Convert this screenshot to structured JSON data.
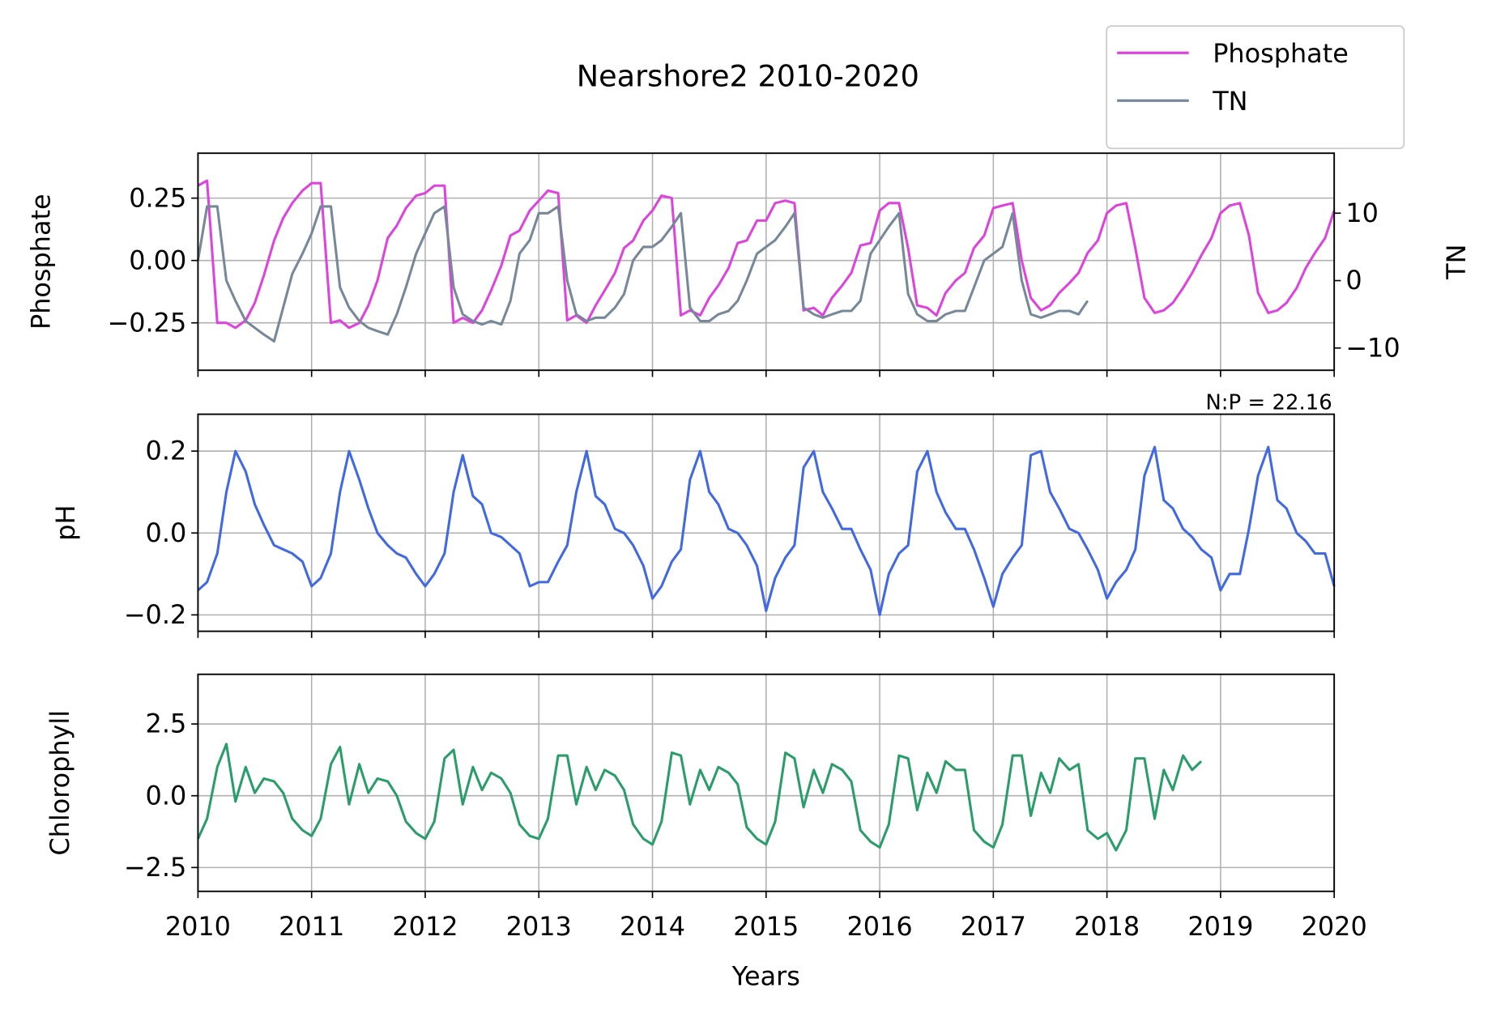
{
  "chart_data": [
    {
      "type": "line",
      "title": "Nearshore2 2010-2020",
      "ylabel": "Phosphate",
      "y2label": "TN",
      "legend": "upper right",
      "grid": true,
      "x": [
        2010,
        2010.08,
        2010.17,
        2010.25,
        2010.33,
        2010.42,
        2010.5,
        2010.58,
        2010.67,
        2010.75,
        2010.83,
        2010.92,
        2011,
        2011.08,
        2011.17,
        2011.25,
        2011.33,
        2011.42,
        2011.5,
        2011.58,
        2011.67,
        2011.75,
        2011.83,
        2011.92,
        2012,
        2012.08,
        2012.17,
        2012.25,
        2012.33,
        2012.42,
        2012.5,
        2012.58,
        2012.67,
        2012.75,
        2012.83,
        2012.92,
        2013,
        2013.08,
        2013.17,
        2013.25,
        2013.33,
        2013.42,
        2013.5,
        2013.58,
        2013.67,
        2013.75,
        2013.83,
        2013.92,
        2014,
        2014.08,
        2014.17,
        2014.25,
        2014.33,
        2014.42,
        2014.5,
        2014.58,
        2014.67,
        2014.75,
        2014.83,
        2014.92,
        2015,
        2015.08,
        2015.17,
        2015.25,
        2015.33,
        2015.42,
        2015.5,
        2015.58,
        2015.67,
        2015.75,
        2015.83,
        2015.92,
        2016,
        2016.08,
        2016.17,
        2016.25,
        2016.33,
        2016.42,
        2016.5,
        2016.58,
        2016.67,
        2016.75,
        2016.83,
        2016.92,
        2017,
        2017.08,
        2017.17,
        2017.25,
        2017.33,
        2017.42,
        2017.5,
        2017.58,
        2017.67,
        2017.75,
        2017.83,
        2017.92,
        2018,
        2018.08,
        2018.17,
        2018.25,
        2018.33,
        2018.42,
        2018.5,
        2018.58,
        2018.67,
        2018.75,
        2018.83,
        2018.92,
        2019,
        2019.08,
        2019.17,
        2019.25,
        2019.33,
        2019.42,
        2019.5,
        2019.58,
        2019.67,
        2019.75,
        2019.83,
        2019.92,
        2020
      ],
      "xlim": [
        2010,
        2020
      ],
      "xticks": [
        2010,
        2011,
        2012,
        2013,
        2014,
        2015,
        2016,
        2017,
        2018,
        2019,
        2020
      ],
      "ylim": [
        -0.44,
        0.43
      ],
      "yticks": [
        {
          "value": -0.25,
          "label": "−0.25"
        },
        {
          "value": 0,
          "label": "0.00"
        },
        0.25
      ],
      "y2lim": [
        -13.3,
        18.9
      ],
      "y2ticks": [
        {
          "value": -10,
          "label": "−10"
        },
        0,
        10
      ],
      "series": [
        {
          "name": "Phosphate",
          "color": "#dd44dd",
          "values": [
            0.3,
            0.32,
            -0.25,
            -0.25,
            -0.27,
            -0.24,
            -0.17,
            -0.06,
            0.08,
            0.17,
            0.23,
            0.28,
            0.31,
            0.31,
            -0.25,
            -0.24,
            -0.27,
            -0.25,
            -0.18,
            -0.08,
            0.09,
            0.14,
            0.21,
            0.26,
            0.27,
            0.3,
            0.3,
            -0.25,
            -0.23,
            -0.25,
            -0.2,
            -0.12,
            -0.02,
            0.1,
            0.12,
            0.2,
            0.24,
            0.28,
            0.27,
            -0.24,
            -0.22,
            -0.25,
            -0.18,
            -0.12,
            -0.05,
            0.05,
            0.08,
            0.16,
            0.2,
            0.26,
            0.25,
            -0.22,
            -0.2,
            -0.22,
            -0.15,
            -0.1,
            -0.03,
            0.07,
            0.08,
            0.16,
            0.16,
            0.23,
            0.24,
            0.23,
            -0.2,
            -0.19,
            -0.22,
            -0.15,
            -0.1,
            -0.05,
            0.06,
            0.07,
            0.2,
            0.23,
            0.23,
            0.05,
            -0.18,
            -0.19,
            -0.22,
            -0.13,
            -0.08,
            -0.05,
            0.05,
            0.1,
            0.21,
            0.22,
            0.23,
            0.0,
            -0.15,
            -0.2,
            -0.18,
            -0.13,
            -0.09,
            -0.05,
            0.03,
            0.08,
            0.19,
            0.22,
            0.23,
            0.05,
            -0.15,
            -0.21,
            -0.2,
            -0.17,
            -0.11,
            -0.05,
            0.02,
            0.09,
            0.19,
            0.22,
            0.23,
            0.1,
            -0.13,
            -0.21,
            -0.2,
            -0.17,
            -0.11,
            -0.03,
            0.03,
            0.09,
            0.2
          ]
        },
        {
          "name": "TN",
          "color": "#778899",
          "axis": "y2",
          "values": [
            3,
            11,
            11,
            0,
            -3,
            -6,
            -7,
            -8,
            -9,
            -4,
            1,
            4,
            7,
            11,
            11,
            -1,
            -4,
            -6,
            -7,
            -7.5,
            -8,
            -5,
            -1,
            4,
            7,
            10,
            11,
            -1,
            -5,
            -6,
            -6.5,
            -6,
            -6.5,
            -3,
            4,
            6,
            10,
            10,
            11,
            0,
            -5,
            -6,
            -5.5,
            -5.5,
            -4,
            -2,
            3,
            5,
            5,
            6,
            8,
            10,
            -4,
            -6,
            -6,
            -5,
            -4.5,
            -3,
            0,
            4,
            5,
            6,
            8,
            10,
            -4,
            -5,
            -5.5,
            -5,
            -4.5,
            -4.5,
            -3,
            4,
            6,
            8,
            10,
            -2,
            -5,
            -6,
            -6,
            -5,
            -4.5,
            -4.5,
            -1,
            3,
            4,
            5,
            10,
            0,
            -5,
            -5.5,
            -5,
            -4.5,
            -4.5,
            -5,
            -3,
            null,
            null,
            null,
            null,
            null,
            null,
            null,
            null,
            null,
            null,
            null,
            null,
            null,
            null,
            null,
            null,
            null,
            null,
            null,
            null,
            null,
            null,
            null,
            null,
            null,
            null
          ]
        }
      ]
    },
    {
      "type": "line",
      "ylabel": "pH",
      "annotation": "N:P = 22.16",
      "grid": true,
      "x": [
        2010,
        2010.08,
        2010.17,
        2010.25,
        2010.33,
        2010.42,
        2010.5,
        2010.58,
        2010.67,
        2010.75,
        2010.83,
        2010.92,
        2011,
        2011.08,
        2011.17,
        2011.25,
        2011.33,
        2011.42,
        2011.5,
        2011.58,
        2011.67,
        2011.75,
        2011.83,
        2011.92,
        2012,
        2012.08,
        2012.17,
        2012.25,
        2012.33,
        2012.42,
        2012.5,
        2012.58,
        2012.67,
        2012.75,
        2012.83,
        2012.92,
        2013,
        2013.08,
        2013.17,
        2013.25,
        2013.33,
        2013.42,
        2013.5,
        2013.58,
        2013.67,
        2013.75,
        2013.83,
        2013.92,
        2014,
        2014.08,
        2014.17,
        2014.25,
        2014.33,
        2014.42,
        2014.5,
        2014.58,
        2014.67,
        2014.75,
        2014.83,
        2014.92,
        2015,
        2015.08,
        2015.17,
        2015.25,
        2015.33,
        2015.42,
        2015.5,
        2015.58,
        2015.67,
        2015.75,
        2015.83,
        2015.92,
        2016,
        2016.08,
        2016.17,
        2016.25,
        2016.33,
        2016.42,
        2016.5,
        2016.58,
        2016.67,
        2016.75,
        2016.83,
        2016.92,
        2017,
        2017.08,
        2017.17,
        2017.25,
        2017.33,
        2017.42,
        2017.5,
        2017.58,
        2017.67,
        2017.75,
        2017.83,
        2017.92,
        2018,
        2018.08,
        2018.17,
        2018.25,
        2018.33,
        2018.42,
        2018.5,
        2018.58,
        2018.67,
        2018.75,
        2018.83,
        2018.92,
        2019,
        2019.08,
        2019.17,
        2019.25,
        2019.33,
        2019.42,
        2019.5,
        2019.58,
        2019.67,
        2019.75,
        2019.83,
        2019.92,
        2020
      ],
      "xlim": [
        2010,
        2020
      ],
      "xticks": [
        2010,
        2011,
        2012,
        2013,
        2014,
        2015,
        2016,
        2017,
        2018,
        2019,
        2020
      ],
      "ylim": [
        -0.24,
        0.29
      ],
      "yticks": [
        {
          "value": -0.2,
          "label": "−0.2"
        },
        {
          "value": 0,
          "label": "0.0"
        },
        0.2
      ],
      "series": [
        {
          "color": "#4169e1",
          "values": [
            -0.14,
            -0.12,
            -0.05,
            0.1,
            0.2,
            0.15,
            0.07,
            0.02,
            -0.03,
            -0.04,
            -0.05,
            -0.07,
            -0.13,
            -0.11,
            -0.05,
            0.1,
            0.2,
            0.13,
            0.06,
            0.0,
            -0.03,
            -0.05,
            -0.06,
            -0.1,
            -0.13,
            -0.1,
            -0.05,
            0.1,
            0.19,
            0.09,
            0.07,
            0.0,
            -0.01,
            -0.03,
            -0.05,
            -0.13,
            -0.12,
            -0.12,
            -0.07,
            -0.03,
            0.1,
            0.2,
            0.09,
            0.07,
            0.01,
            0.0,
            -0.03,
            -0.08,
            -0.16,
            -0.13,
            -0.07,
            -0.04,
            0.13,
            0.2,
            0.1,
            0.07,
            0.01,
            0.0,
            -0.03,
            -0.08,
            -0.19,
            -0.11,
            -0.06,
            -0.03,
            0.16,
            0.2,
            0.1,
            0.06,
            0.01,
            0.01,
            -0.04,
            -0.09,
            -0.2,
            -0.1,
            -0.05,
            -0.03,
            0.15,
            0.2,
            0.1,
            0.05,
            0.01,
            0.01,
            -0.04,
            -0.11,
            -0.18,
            -0.1,
            -0.06,
            -0.03,
            0.19,
            0.2,
            0.1,
            0.06,
            0.01,
            0.0,
            -0.04,
            -0.09,
            -0.16,
            -0.12,
            -0.09,
            -0.04,
            0.14,
            0.21,
            0.08,
            0.06,
            0.01,
            -0.01,
            -0.04,
            -0.06,
            -0.14,
            -0.1,
            -0.1,
            0.01,
            0.14,
            0.21,
            0.08,
            0.06,
            0.0,
            -0.02,
            -0.05,
            -0.05,
            -0.13
          ]
        }
      ]
    },
    {
      "type": "line",
      "ylabel": "Chlorophyll",
      "xlabel": "Years",
      "grid": true,
      "x": [
        2010,
        2010.08,
        2010.17,
        2010.25,
        2010.33,
        2010.42,
        2010.5,
        2010.58,
        2010.67,
        2010.75,
        2010.83,
        2010.92,
        2011,
        2011.08,
        2011.17,
        2011.25,
        2011.33,
        2011.42,
        2011.5,
        2011.58,
        2011.67,
        2011.75,
        2011.83,
        2011.92,
        2012,
        2012.08,
        2012.17,
        2012.25,
        2012.33,
        2012.42,
        2012.5,
        2012.58,
        2012.67,
        2012.75,
        2012.83,
        2012.92,
        2013,
        2013.08,
        2013.17,
        2013.25,
        2013.33,
        2013.42,
        2013.5,
        2013.58,
        2013.67,
        2013.75,
        2013.83,
        2013.92,
        2014,
        2014.08,
        2014.17,
        2014.25,
        2014.33,
        2014.42,
        2014.5,
        2014.58,
        2014.67,
        2014.75,
        2014.83,
        2014.92,
        2015,
        2015.08,
        2015.17,
        2015.25,
        2015.33,
        2015.42,
        2015.5,
        2015.58,
        2015.67,
        2015.75,
        2015.83,
        2015.92,
        2016,
        2016.08,
        2016.17,
        2016.25,
        2016.33,
        2016.42,
        2016.5,
        2016.58,
        2016.67,
        2016.75,
        2016.83,
        2016.92,
        2017,
        2017.08,
        2017.17,
        2017.25,
        2017.33,
        2017.42,
        2017.5,
        2017.58,
        2017.67,
        2017.75,
        2017.83,
        2017.92,
        2018,
        2018.08,
        2018.17,
        2018.25,
        2018.33,
        2018.42,
        2018.5,
        2018.58,
        2018.67,
        2018.75,
        2018.83,
        2018.92,
        2019,
        2019.08,
        2019.17,
        2019.25,
        2019.33,
        2019.42,
        2019.5,
        2019.58,
        2019.67,
        2019.75,
        2019.83,
        2019.92,
        2020
      ],
      "xlim": [
        2010,
        2020
      ],
      "xticks": [
        2010,
        2011,
        2012,
        2013,
        2014,
        2015,
        2016,
        2017,
        2018,
        2019,
        2020
      ],
      "ylim": [
        -3.33,
        4.23
      ],
      "yticks": [
        {
          "value": -2.5,
          "label": "−2.5"
        },
        {
          "value": 0,
          "label": "0.0"
        },
        2.5
      ],
      "series": [
        {
          "color": "#2a9d6a",
          "values": [
            -1.5,
            -0.8,
            1.0,
            1.8,
            -0.2,
            1.0,
            0.1,
            0.6,
            0.5,
            0.1,
            -0.8,
            -1.2,
            -1.4,
            -0.8,
            1.1,
            1.7,
            -0.3,
            1.1,
            0.1,
            0.6,
            0.5,
            0.0,
            -0.9,
            -1.3,
            -1.5,
            -0.9,
            1.3,
            1.6,
            -0.3,
            1.0,
            0.2,
            0.8,
            0.6,
            0.1,
            -1.0,
            -1.4,
            -1.5,
            -0.8,
            1.4,
            1.4,
            -0.3,
            1.0,
            0.2,
            0.9,
            0.7,
            0.2,
            -1.0,
            -1.5,
            -1.7,
            -0.9,
            1.5,
            1.4,
            -0.3,
            0.9,
            0.2,
            1.0,
            0.8,
            0.4,
            -1.1,
            -1.5,
            -1.7,
            -0.9,
            1.5,
            1.3,
            -0.4,
            0.9,
            0.1,
            1.1,
            0.9,
            0.5,
            -1.2,
            -1.6,
            -1.8,
            -1.0,
            1.4,
            1.3,
            -0.5,
            0.8,
            0.1,
            1.2,
            0.9,
            0.9,
            -1.2,
            -1.6,
            -1.8,
            -1.0,
            1.4,
            1.4,
            -0.7,
            0.8,
            0.1,
            1.3,
            0.9,
            1.1,
            -1.2,
            -1.5,
            -1.3,
            -1.9,
            -1.2,
            1.3,
            1.3,
            -0.8,
            0.9,
            0.2,
            1.4,
            0.9,
            1.2,
            null,
            null,
            null,
            null,
            null,
            null,
            null,
            null,
            null,
            null,
            null,
            null,
            null,
            null
          ]
        }
      ]
    }
  ]
}
